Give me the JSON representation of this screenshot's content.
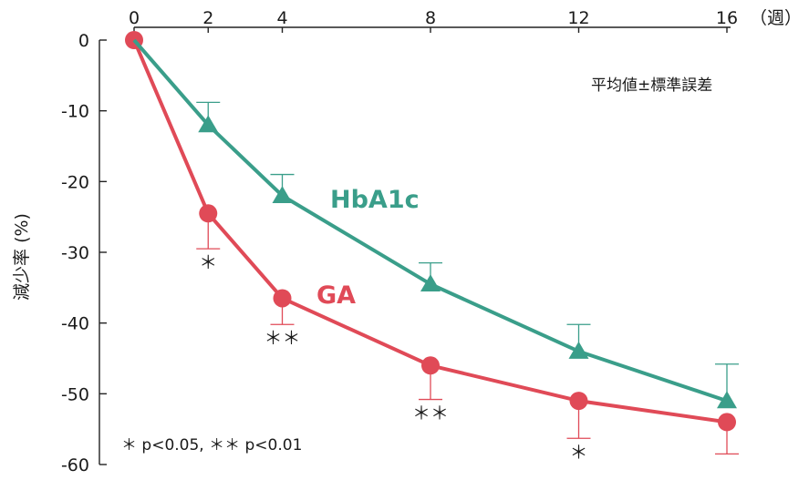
{
  "chart_data": {
    "type": "line",
    "x": [
      0,
      2,
      4,
      8,
      12,
      16
    ],
    "x_ticks": [
      "0",
      "2",
      "4",
      "8",
      "12",
      "16"
    ],
    "x_unit": "（週）",
    "ylabel": "減少率 (%)",
    "y_ticks": [
      "0",
      "-10",
      "-20",
      "-30",
      "-40",
      "-50",
      "-60"
    ],
    "ylim": [
      -60,
      0
    ],
    "note": "平均値±標準誤差",
    "footnote": "＊ p<0.05,  ＊＊ p<0.01",
    "series": [
      {
        "name": "HbA1c",
        "marker": "triangle",
        "color": "#3a9e8a",
        "values": [
          0,
          -12.0,
          -22.0,
          -34.5,
          -44.0,
          -51.0
        ],
        "error": [
          0,
          3.2,
          3.0,
          3.0,
          3.8,
          5.2
        ],
        "error_direction": "up",
        "significance": [
          "",
          "",
          "",
          "",
          "",
          ""
        ]
      },
      {
        "name": "GA",
        "marker": "circle",
        "color": "#e04a57",
        "values": [
          0,
          -24.5,
          -36.5,
          -46.0,
          -51.0,
          -54.0
        ],
        "error": [
          0,
          5.0,
          3.7,
          4.8,
          5.3,
          4.5
        ],
        "error_direction": "down",
        "significance": [
          "",
          "＊",
          "＊＊",
          "＊＊",
          "＊",
          ""
        ]
      }
    ],
    "grid": false,
    "legend": "inline labels"
  }
}
